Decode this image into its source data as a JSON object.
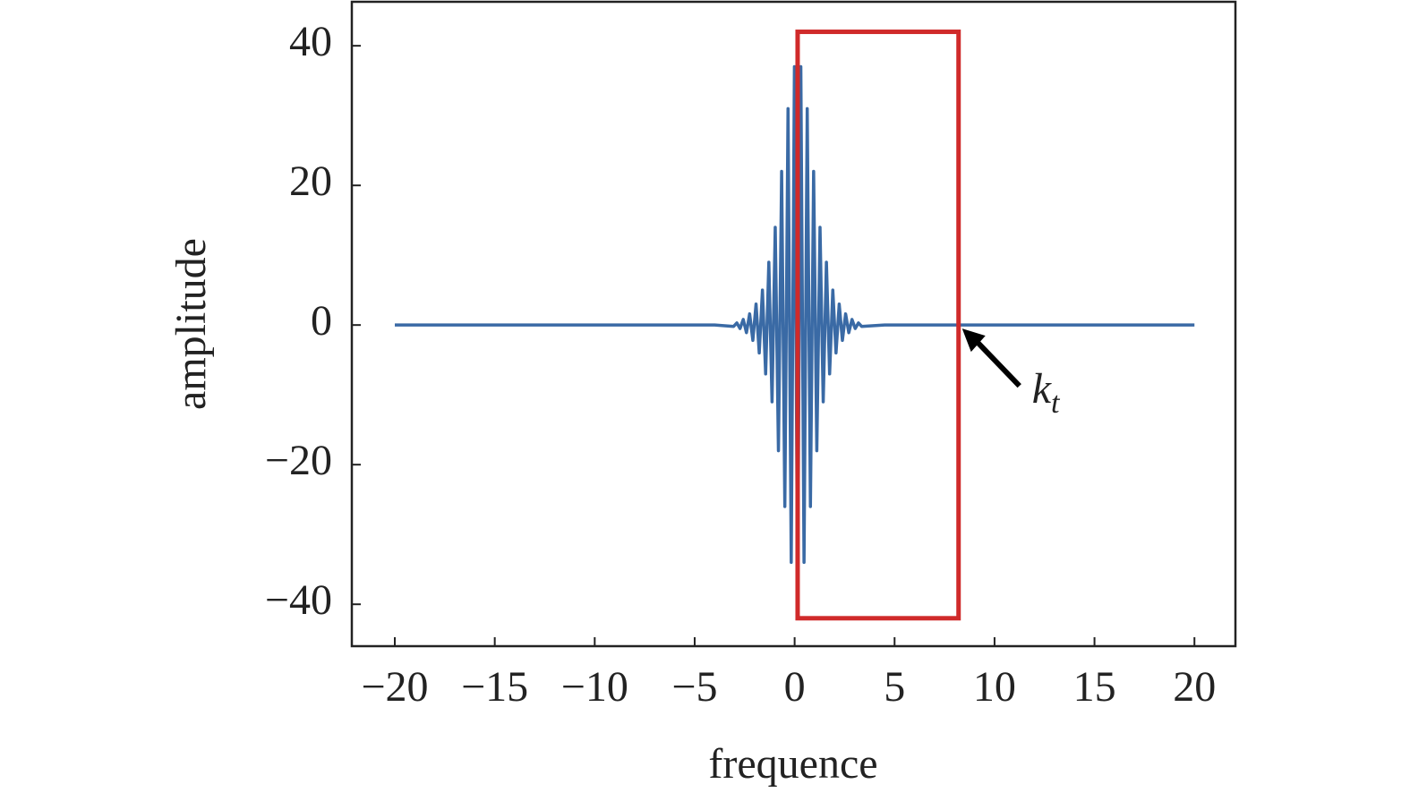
{
  "chart_data": {
    "type": "line",
    "xlabel": "frequence",
    "ylabel": "amplitude",
    "x": [
      -20,
      -4,
      -3.05,
      -2.89,
      -2.73,
      -2.57,
      -2.41,
      -2.25,
      -2.09,
      -1.93,
      -1.77,
      -1.61,
      -1.45,
      -1.29,
      -1.13,
      -0.97,
      -0.81,
      -0.65,
      -0.49,
      -0.33,
      -0.17,
      -0.01,
      0.15,
      0.31,
      0.47,
      0.63,
      0.79,
      0.95,
      1.11,
      1.27,
      1.43,
      1.59,
      1.75,
      1.91,
      2.07,
      2.23,
      2.39,
      2.55,
      2.71,
      2.87,
      3.03,
      3.19,
      3.35,
      4.5,
      20
    ],
    "series": [
      {
        "color": "#3a6aa5",
        "values": [
          0,
          0,
          -0.2,
          0.3,
          -0.5,
          0.8,
          -1.1,
          1.6,
          -2.2,
          3,
          -4,
          5,
          -7,
          9,
          -11,
          14,
          -18,
          22,
          -26,
          31,
          -34,
          37,
          -39,
          37,
          -34,
          31,
          -26,
          22,
          -18,
          14,
          -11,
          9,
          -7,
          5,
          -4,
          3,
          -2.2,
          1.6,
          -1.1,
          0.8,
          -0.5,
          0.3,
          -0.2,
          0,
          0
        ]
      }
    ],
    "xlim": [
      -22.15,
      22.05
    ],
    "ylim": [
      -46,
      46.3
    ],
    "xticks": [
      {
        "value": -20,
        "label": "−20"
      },
      {
        "value": -15,
        "label": "−15"
      },
      {
        "value": -10,
        "label": "−10"
      },
      {
        "value": -5,
        "label": "−5"
      },
      0,
      5,
      10,
      15,
      20
    ],
    "yticks": [
      {
        "value": -40,
        "label": "−40"
      },
      {
        "value": -20,
        "label": "−20"
      },
      0,
      20,
      40
    ],
    "highlight": {
      "x": [
        0.15,
        8.2
      ],
      "y": [
        -42,
        42
      ],
      "color": "#d02a2a"
    },
    "annotation": {
      "text": "k",
      "subscript": "t",
      "x": 8.2,
      "y": 0
    }
  }
}
